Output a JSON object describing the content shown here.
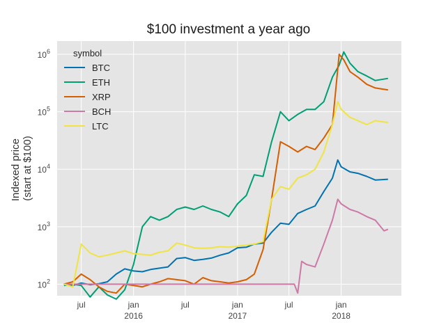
{
  "chart_data": {
    "type": "line",
    "title": "$100 investment a year ago",
    "ylabel_lines": [
      "Indexed price",
      "(start at $100)"
    ],
    "xlabel": "",
    "y_scale": "log",
    "ylim": [
      63,
      1700000
    ],
    "xlim": [
      "2015-04-07",
      "2018-08-01"
    ],
    "grid": true,
    "legend": {
      "title": "symbol",
      "placement": "top-left"
    },
    "x_ticks": [
      {
        "date": "2015-07-01",
        "label": "jul",
        "sub": ""
      },
      {
        "date": "2016-01-01",
        "label": "jan",
        "sub": "2016"
      },
      {
        "date": "2016-07-01",
        "label": "jul",
        "sub": ""
      },
      {
        "date": "2017-01-01",
        "label": "jan",
        "sub": "2017"
      },
      {
        "date": "2017-07-01",
        "label": "jul",
        "sub": ""
      },
      {
        "date": "2018-01-01",
        "label": "jan",
        "sub": "2018"
      }
    ],
    "y_ticks": [
      {
        "value": 100,
        "base": "10",
        "exp": "2"
      },
      {
        "value": 1000,
        "base": "10",
        "exp": "3"
      },
      {
        "value": 10000,
        "base": "10",
        "exp": "4"
      },
      {
        "value": 100000,
        "base": "10",
        "exp": "5"
      },
      {
        "value": 1000000,
        "base": "10",
        "exp": "6"
      }
    ],
    "series": [
      {
        "name": "BTC",
        "color": "#0072b2",
        "points": [
          [
            "2015-05-01",
            100
          ],
          [
            "2015-06-01",
            95
          ],
          [
            "2015-07-01",
            105
          ],
          [
            "2015-08-01",
            98
          ],
          [
            "2015-09-01",
            102
          ],
          [
            "2015-10-01",
            110
          ],
          [
            "2015-11-01",
            150
          ],
          [
            "2015-12-01",
            185
          ],
          [
            "2016-01-01",
            170
          ],
          [
            "2016-02-01",
            165
          ],
          [
            "2016-03-01",
            180
          ],
          [
            "2016-04-01",
            190
          ],
          [
            "2016-05-01",
            200
          ],
          [
            "2016-06-01",
            280
          ],
          [
            "2016-07-01",
            290
          ],
          [
            "2016-08-01",
            260
          ],
          [
            "2016-09-01",
            270
          ],
          [
            "2016-10-01",
            285
          ],
          [
            "2016-11-01",
            320
          ],
          [
            "2016-12-01",
            350
          ],
          [
            "2017-01-01",
            430
          ],
          [
            "2017-02-01",
            440
          ],
          [
            "2017-03-01",
            500
          ],
          [
            "2017-04-01",
            520
          ],
          [
            "2017-05-01",
            800
          ],
          [
            "2017-06-01",
            1150
          ],
          [
            "2017-07-01",
            1100
          ],
          [
            "2017-08-01",
            1700
          ],
          [
            "2017-09-01",
            2000
          ],
          [
            "2017-10-01",
            2300
          ],
          [
            "2017-11-01",
            4100
          ],
          [
            "2017-12-01",
            7000
          ],
          [
            "2017-12-20",
            14500
          ],
          [
            "2018-01-01",
            11000
          ],
          [
            "2018-02-01",
            9000
          ],
          [
            "2018-03-01",
            8500
          ],
          [
            "2018-04-01",
            7500
          ],
          [
            "2018-05-01",
            6500
          ],
          [
            "2018-06-15",
            6700
          ]
        ]
      },
      {
        "name": "ETH",
        "color": "#009e73",
        "points": [
          [
            "2015-05-01",
            95
          ],
          [
            "2015-06-01",
            100
          ],
          [
            "2015-07-01",
            95
          ],
          [
            "2015-08-01",
            60
          ],
          [
            "2015-09-01",
            90
          ],
          [
            "2015-10-01",
            65
          ],
          [
            "2015-11-01",
            55
          ],
          [
            "2015-12-01",
            80
          ],
          [
            "2016-01-01",
            220
          ],
          [
            "2016-02-01",
            1000
          ],
          [
            "2016-03-01",
            1500
          ],
          [
            "2016-04-01",
            1300
          ],
          [
            "2016-05-01",
            1500
          ],
          [
            "2016-06-01",
            2000
          ],
          [
            "2016-07-01",
            2200
          ],
          [
            "2016-08-01",
            2000
          ],
          [
            "2016-09-01",
            2300
          ],
          [
            "2016-10-01",
            2000
          ],
          [
            "2016-11-01",
            1800
          ],
          [
            "2016-12-01",
            1500
          ],
          [
            "2017-01-01",
            2500
          ],
          [
            "2017-02-01",
            3500
          ],
          [
            "2017-03-01",
            8000
          ],
          [
            "2017-04-01",
            7500
          ],
          [
            "2017-05-01",
            30000
          ],
          [
            "2017-06-01",
            100000
          ],
          [
            "2017-07-01",
            70000
          ],
          [
            "2017-08-01",
            90000
          ],
          [
            "2017-09-01",
            110000
          ],
          [
            "2017-10-01",
            110000
          ],
          [
            "2017-11-01",
            150000
          ],
          [
            "2017-12-01",
            400000
          ],
          [
            "2017-12-25",
            650000
          ],
          [
            "2018-01-10",
            1100000
          ],
          [
            "2018-02-01",
            700000
          ],
          [
            "2018-03-01",
            500000
          ],
          [
            "2018-04-01",
            420000
          ],
          [
            "2018-05-01",
            350000
          ],
          [
            "2018-06-15",
            380000
          ]
        ]
      },
      {
        "name": "XRP",
        "color": "#d55e00",
        "points": [
          [
            "2015-05-01",
            100
          ],
          [
            "2015-06-01",
            110
          ],
          [
            "2015-07-01",
            150
          ],
          [
            "2015-08-01",
            120
          ],
          [
            "2015-09-01",
            90
          ],
          [
            "2015-10-01",
            75
          ],
          [
            "2015-11-01",
            70
          ],
          [
            "2015-12-01",
            100
          ],
          [
            "2016-01-01",
            95
          ],
          [
            "2016-02-01",
            90
          ],
          [
            "2016-03-01",
            100
          ],
          [
            "2016-04-01",
            110
          ],
          [
            "2016-05-01",
            125
          ],
          [
            "2016-06-01",
            120
          ],
          [
            "2016-07-01",
            115
          ],
          [
            "2016-08-01",
            100
          ],
          [
            "2016-09-01",
            130
          ],
          [
            "2016-10-01",
            115
          ],
          [
            "2016-11-01",
            110
          ],
          [
            "2016-12-01",
            105
          ],
          [
            "2017-01-01",
            110
          ],
          [
            "2017-02-01",
            120
          ],
          [
            "2017-03-01",
            150
          ],
          [
            "2017-04-01",
            400
          ],
          [
            "2017-05-01",
            3000
          ],
          [
            "2017-06-01",
            30000
          ],
          [
            "2017-07-01",
            25000
          ],
          [
            "2017-08-01",
            20000
          ],
          [
            "2017-09-01",
            25000
          ],
          [
            "2017-10-01",
            22000
          ],
          [
            "2017-11-01",
            35000
          ],
          [
            "2017-12-01",
            60000
          ],
          [
            "2017-12-25",
            1000000
          ],
          [
            "2018-01-10",
            800000
          ],
          [
            "2018-02-01",
            500000
          ],
          [
            "2018-03-01",
            400000
          ],
          [
            "2018-04-01",
            300000
          ],
          [
            "2018-05-01",
            260000
          ],
          [
            "2018-06-15",
            240000
          ]
        ]
      },
      {
        "name": "BCH",
        "color": "#cc79a7",
        "points": [
          [
            "2015-05-01",
            100
          ],
          [
            "2016-01-01",
            100
          ],
          [
            "2017-01-01",
            100
          ],
          [
            "2017-07-20",
            100
          ],
          [
            "2017-08-01",
            70
          ],
          [
            "2017-08-15",
            250
          ],
          [
            "2017-09-01",
            220
          ],
          [
            "2017-10-01",
            200
          ],
          [
            "2017-11-01",
            500
          ],
          [
            "2017-12-01",
            1300
          ],
          [
            "2017-12-20",
            3000
          ],
          [
            "2018-01-01",
            2500
          ],
          [
            "2018-02-01",
            2000
          ],
          [
            "2018-03-01",
            1800
          ],
          [
            "2018-04-01",
            1500
          ],
          [
            "2018-05-01",
            1300
          ],
          [
            "2018-06-01",
            850
          ],
          [
            "2018-06-15",
            900
          ]
        ]
      },
      {
        "name": "LTC",
        "color": "#f0e442",
        "points": [
          [
            "2015-05-01",
            100
          ],
          [
            "2015-06-01",
            90
          ],
          [
            "2015-07-01",
            500
          ],
          [
            "2015-08-01",
            350
          ],
          [
            "2015-09-01",
            300
          ],
          [
            "2015-10-01",
            320
          ],
          [
            "2015-11-01",
            350
          ],
          [
            "2015-12-01",
            380
          ],
          [
            "2016-01-01",
            340
          ],
          [
            "2016-02-01",
            330
          ],
          [
            "2016-03-01",
            320
          ],
          [
            "2016-04-01",
            360
          ],
          [
            "2016-05-01",
            380
          ],
          [
            "2016-06-01",
            520
          ],
          [
            "2016-07-01",
            480
          ],
          [
            "2016-08-01",
            430
          ],
          [
            "2016-09-01",
            420
          ],
          [
            "2016-10-01",
            430
          ],
          [
            "2016-11-01",
            450
          ],
          [
            "2016-12-01",
            440
          ],
          [
            "2017-01-01",
            460
          ],
          [
            "2017-02-01",
            480
          ],
          [
            "2017-03-01",
            500
          ],
          [
            "2017-04-01",
            550
          ],
          [
            "2017-05-01",
            3000
          ],
          [
            "2017-06-01",
            5000
          ],
          [
            "2017-07-01",
            4500
          ],
          [
            "2017-08-01",
            7000
          ],
          [
            "2017-09-01",
            8000
          ],
          [
            "2017-10-01",
            10000
          ],
          [
            "2017-11-01",
            20000
          ],
          [
            "2017-12-01",
            60000
          ],
          [
            "2017-12-20",
            150000
          ],
          [
            "2018-01-01",
            110000
          ],
          [
            "2018-02-01",
            80000
          ],
          [
            "2018-03-01",
            70000
          ],
          [
            "2018-04-01",
            60000
          ],
          [
            "2018-05-01",
            70000
          ],
          [
            "2018-06-15",
            65000
          ]
        ]
      }
    ]
  }
}
